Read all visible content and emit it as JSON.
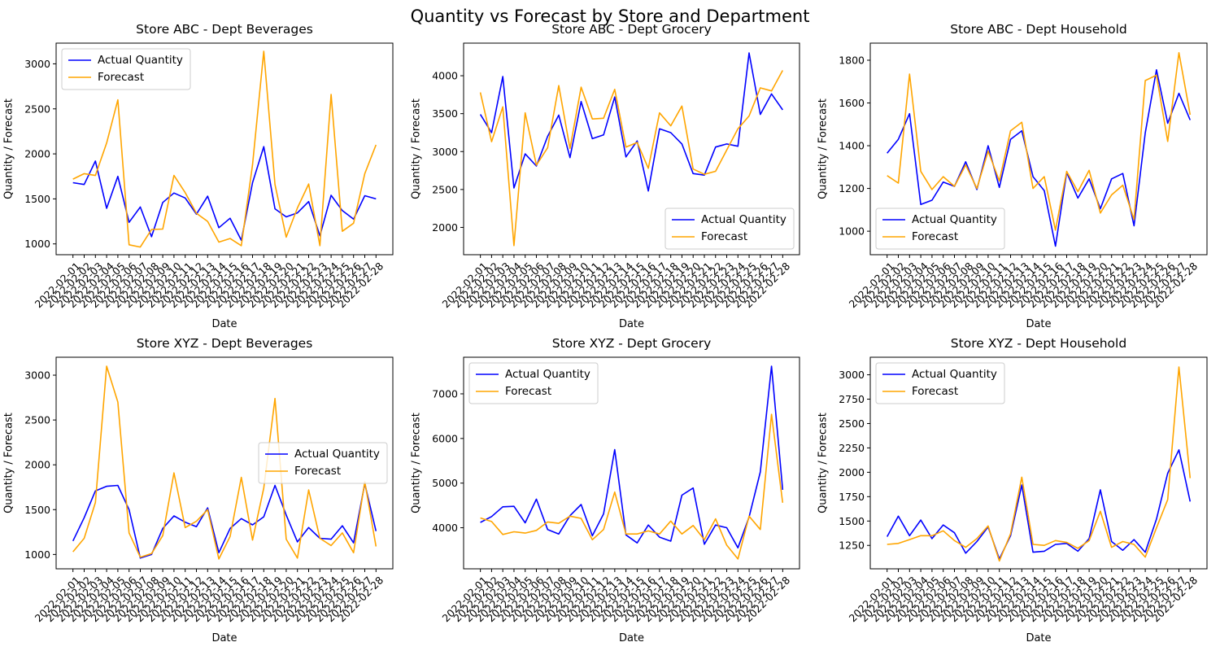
{
  "figure": {
    "suptitle": "Quantity vs Forecast by Store and Department"
  },
  "colors": {
    "actual": "#0000ff",
    "forecast": "#ffa500"
  },
  "chart_data": [
    {
      "type": "line",
      "title": "Store ABC - Dept Beverages",
      "xlabel": "Date",
      "ylabel": "Quantity / Forecast",
      "ylim": [
        880,
        3230
      ],
      "yticks": [
        1000,
        1500,
        2000,
        2500,
        3000
      ],
      "legend": "upper left",
      "x": [
        "2022-02-01",
        "2022-02-02",
        "2022-02-03",
        "2022-02-04",
        "2022-02-05",
        "2022-02-06",
        "2022-02-07",
        "2022-02-08",
        "2022-02-09",
        "2022-02-10",
        "2022-02-11",
        "2022-02-12",
        "2022-02-13",
        "2022-02-14",
        "2022-02-15",
        "2022-02-16",
        "2022-02-17",
        "2022-02-18",
        "2022-02-19",
        "2022-02-20",
        "2022-02-21",
        "2022-02-22",
        "2022-02-23",
        "2022-02-24",
        "2022-02-25",
        "2022-02-26",
        "2022-02-27",
        "2022-02-28"
      ],
      "series": [
        {
          "name": "Actual Quantity",
          "color": "#0000ff",
          "values": [
            1680,
            1660,
            1920,
            1395,
            1750,
            1240,
            1410,
            1080,
            1460,
            1565,
            1510,
            1330,
            1530,
            1180,
            1285,
            1040,
            1680,
            2080,
            1390,
            1300,
            1345,
            1470,
            1090,
            1540,
            1370,
            1275,
            1535,
            1500
          ]
        },
        {
          "name": "Forecast",
          "color": "#ffa500",
          "values": [
            1720,
            1780,
            1760,
            2120,
            2600,
            990,
            965,
            1160,
            1165,
            1760,
            1570,
            1340,
            1250,
            1020,
            1060,
            980,
            1880,
            3140,
            1660,
            1075,
            1400,
            1665,
            980,
            2660,
            1140,
            1230,
            1780,
            2100
          ]
        }
      ]
    },
    {
      "type": "line",
      "title": "Store ABC - Dept Grocery",
      "xlabel": "Date",
      "ylabel": "Quantity / Forecast",
      "ylim": [
        1640,
        4430
      ],
      "yticks": [
        2000,
        2500,
        3000,
        3500,
        4000
      ],
      "legend": "lower right",
      "x": [
        "2022-02-01",
        "2022-02-02",
        "2022-02-03",
        "2022-02-04",
        "2022-02-05",
        "2022-02-06",
        "2022-02-07",
        "2022-02-08",
        "2022-02-09",
        "2022-02-10",
        "2022-02-11",
        "2022-02-12",
        "2022-02-13",
        "2022-02-14",
        "2022-02-15",
        "2022-02-16",
        "2022-02-17",
        "2022-02-18",
        "2022-02-19",
        "2022-02-20",
        "2022-02-21",
        "2022-02-22",
        "2022-02-23",
        "2022-02-24",
        "2022-02-25",
        "2022-02-26",
        "2022-02-27",
        "2022-02-28"
      ],
      "series": [
        {
          "name": "Actual Quantity",
          "color": "#0000ff",
          "values": [
            3490,
            3250,
            3990,
            2520,
            2970,
            2810,
            3200,
            3480,
            2920,
            3660,
            3170,
            3220,
            3720,
            2930,
            3140,
            2480,
            3300,
            3250,
            3100,
            2710,
            2690,
            3060,
            3100,
            3070,
            4300,
            3490,
            3760,
            3550
          ]
        },
        {
          "name": "Forecast",
          "color": "#ffa500",
          "values": [
            3780,
            3130,
            3590,
            1760,
            3510,
            2820,
            3050,
            3870,
            3040,
            3850,
            3430,
            3440,
            3820,
            3060,
            3120,
            2780,
            3510,
            3340,
            3600,
            2770,
            2700,
            2740,
            3020,
            3300,
            3470,
            3840,
            3800,
            4070
          ]
        }
      ]
    },
    {
      "type": "line",
      "title": "Store ABC - Dept Household",
      "xlabel": "Date",
      "ylabel": "Quantity / Forecast",
      "ylim": [
        890,
        1880
      ],
      "yticks": [
        1000,
        1200,
        1400,
        1600,
        1800
      ],
      "legend": "lower left",
      "x": [
        "2022-02-01",
        "2022-02-02",
        "2022-02-03",
        "2022-02-04",
        "2022-02-05",
        "2022-02-06",
        "2022-02-07",
        "2022-02-08",
        "2022-02-09",
        "2022-02-10",
        "2022-02-11",
        "2022-02-12",
        "2022-02-13",
        "2022-02-14",
        "2022-02-15",
        "2022-02-16",
        "2022-02-17",
        "2022-02-18",
        "2022-02-19",
        "2022-02-20",
        "2022-02-21",
        "2022-02-22",
        "2022-02-23",
        "2022-02-24",
        "2022-02-25",
        "2022-02-26",
        "2022-02-27",
        "2022-02-28"
      ],
      "series": [
        {
          "name": "Actual Quantity",
          "color": "#0000ff",
          "values": [
            1365,
            1430,
            1550,
            1125,
            1145,
            1230,
            1210,
            1325,
            1195,
            1400,
            1205,
            1430,
            1470,
            1255,
            1190,
            930,
            1275,
            1155,
            1245,
            1105,
            1245,
            1270,
            1025,
            1460,
            1755,
            1505,
            1645,
            1520
          ]
        },
        {
          "name": "Forecast",
          "color": "#ffa500",
          "values": [
            1260,
            1225,
            1735,
            1280,
            1195,
            1255,
            1210,
            1310,
            1200,
            1375,
            1235,
            1470,
            1510,
            1200,
            1255,
            1005,
            1280,
            1185,
            1285,
            1085,
            1170,
            1215,
            1055,
            1705,
            1730,
            1420,
            1835,
            1545
          ]
        }
      ]
    },
    {
      "type": "line",
      "title": "Store XYZ - Dept Beverages",
      "xlabel": "Date",
      "ylabel": "Quantity / Forecast",
      "ylim": [
        840,
        3200
      ],
      "yticks": [
        1000,
        1500,
        2000,
        2500,
        3000
      ],
      "legend": "center right",
      "x": [
        "2022-02-01",
        "2022-02-02",
        "2022-02-03",
        "2022-02-04",
        "2022-02-05",
        "2022-02-06",
        "2022-02-07",
        "2022-02-08",
        "2022-02-09",
        "2022-02-10",
        "2022-02-11",
        "2022-02-12",
        "2022-02-13",
        "2022-02-14",
        "2022-02-15",
        "2022-02-16",
        "2022-02-17",
        "2022-02-18",
        "2022-02-19",
        "2022-02-20",
        "2022-02-21",
        "2022-02-22",
        "2022-02-23",
        "2022-02-24",
        "2022-02-25",
        "2022-02-26",
        "2022-02-27",
        "2022-02-28"
      ],
      "series": [
        {
          "name": "Actual Quantity",
          "color": "#0000ff",
          "values": [
            1150,
            1410,
            1710,
            1760,
            1770,
            1500,
            960,
            1000,
            1290,
            1430,
            1360,
            1310,
            1520,
            1020,
            1290,
            1400,
            1330,
            1420,
            1770,
            1440,
            1140,
            1300,
            1180,
            1170,
            1320,
            1130,
            1790,
            1260
          ]
        },
        {
          "name": "Forecast",
          "color": "#ffa500",
          "values": [
            1030,
            1180,
            1580,
            3100,
            2700,
            1240,
            970,
            1010,
            1210,
            1910,
            1300,
            1370,
            1500,
            950,
            1200,
            1860,
            1160,
            1740,
            2740,
            1170,
            960,
            1720,
            1180,
            1100,
            1240,
            1020,
            1810,
            1090
          ]
        }
      ]
    },
    {
      "type": "line",
      "title": "Store XYZ - Dept Grocery",
      "xlabel": "Date",
      "ylabel": "Quantity / Forecast",
      "ylim": [
        3080,
        7820
      ],
      "yticks": [
        4000,
        5000,
        6000,
        7000
      ],
      "legend": "upper left",
      "x": [
        "2022-02-01",
        "2022-02-02",
        "2022-02-03",
        "2022-02-04",
        "2022-02-05",
        "2022-02-06",
        "2022-02-07",
        "2022-02-08",
        "2022-02-09",
        "2022-02-10",
        "2022-02-11",
        "2022-02-12",
        "2022-02-13",
        "2022-02-14",
        "2022-02-15",
        "2022-02-16",
        "2022-02-17",
        "2022-02-18",
        "2022-02-19",
        "2022-02-20",
        "2022-02-21",
        "2022-02-22",
        "2022-02-23",
        "2022-02-24",
        "2022-02-25",
        "2022-02-26",
        "2022-02-27",
        "2022-02-28"
      ],
      "series": [
        {
          "name": "Actual Quantity",
          "color": "#0000ff",
          "values": [
            4120,
            4250,
            4470,
            4480,
            4110,
            4640,
            3960,
            3860,
            4270,
            4520,
            3820,
            4310,
            5750,
            3840,
            3660,
            4060,
            3790,
            3700,
            4730,
            4890,
            3630,
            4060,
            4000,
            3550,
            4240,
            5250,
            7620,
            4850
          ]
        },
        {
          "name": "Forecast",
          "color": "#ffa500",
          "values": [
            4220,
            4140,
            3850,
            3910,
            3880,
            3940,
            4130,
            4100,
            4260,
            4210,
            3730,
            3960,
            4800,
            3860,
            3860,
            3930,
            3860,
            4150,
            3860,
            4050,
            3730,
            4200,
            3610,
            3300,
            4260,
            3960,
            6540,
            4560
          ]
        }
      ]
    },
    {
      "type": "line",
      "title": "Store XYZ - Dept Household",
      "xlabel": "Date",
      "ylabel": "Quantity / Forecast",
      "ylim": [
        1010,
        3180
      ],
      "yticks": [
        1000,
        1250,
        1500,
        1750,
        2000,
        2250,
        2500,
        2750,
        3000
      ],
      "legend": "upper left",
      "x": [
        "2022-02-01",
        "2022-02-02",
        "2022-02-03",
        "2022-02-04",
        "2022-02-05",
        "2022-02-06",
        "2022-02-07",
        "2022-02-08",
        "2022-02-09",
        "2022-02-10",
        "2022-02-11",
        "2022-02-12",
        "2022-02-13",
        "2022-02-14",
        "2022-02-15",
        "2022-02-16",
        "2022-02-17",
        "2022-02-18",
        "2022-02-19",
        "2022-02-20",
        "2022-02-21",
        "2022-02-22",
        "2022-02-23",
        "2022-02-24",
        "2022-02-25",
        "2022-02-26",
        "2022-02-27",
        "2022-02-28"
      ],
      "series": [
        {
          "name": "Actual Quantity",
          "color": "#0000ff",
          "values": [
            1340,
            1550,
            1350,
            1510,
            1320,
            1460,
            1380,
            1170,
            1290,
            1440,
            1110,
            1350,
            1870,
            1180,
            1190,
            1260,
            1270,
            1190,
            1320,
            1820,
            1290,
            1200,
            1310,
            1180,
            1520,
            1990,
            2230,
            1700
          ]
        },
        {
          "name": "Forecast",
          "color": "#ffa500",
          "values": [
            1260,
            1270,
            1310,
            1350,
            1350,
            1400,
            1300,
            1230,
            1320,
            1450,
            1090,
            1370,
            1950,
            1260,
            1250,
            1300,
            1280,
            1220,
            1300,
            1600,
            1230,
            1290,
            1260,
            1130,
            1430,
            1720,
            3080,
            1940
          ]
        }
      ]
    }
  ]
}
